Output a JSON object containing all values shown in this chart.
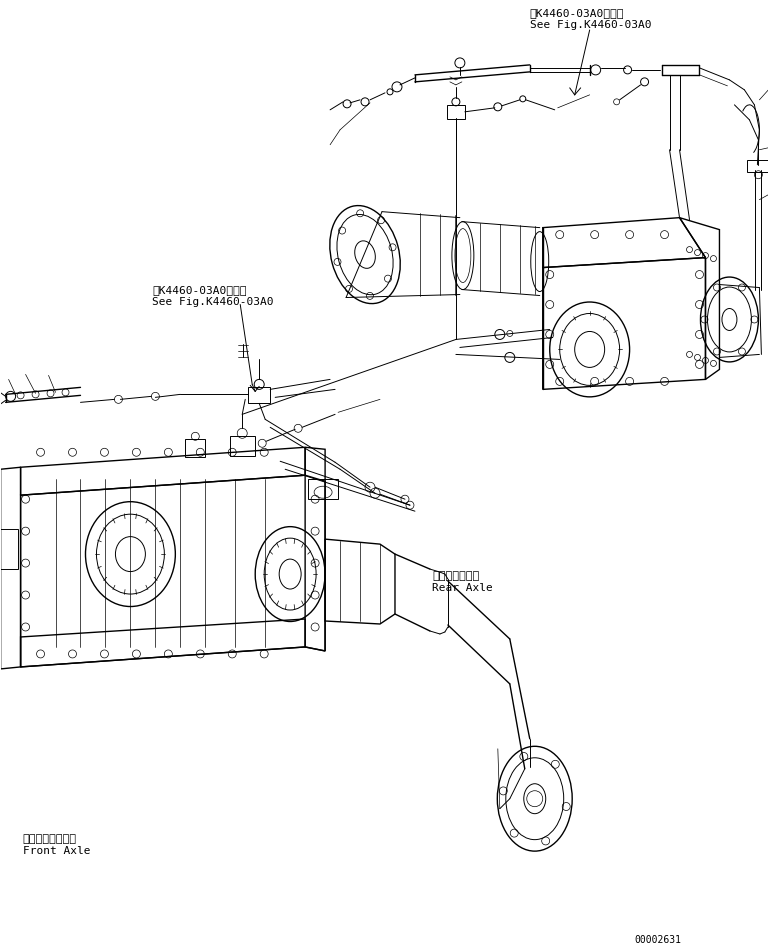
{
  "bg_color": "#ffffff",
  "line_color": "#000000",
  "fig_width": 7.69,
  "fig_height": 9.48,
  "dpi": 100,
  "doc_number": "00002631",
  "labels": {
    "top_right_jp": "第K4460-03A0図参照",
    "top_right_en": "See Fig.K4460-03A0",
    "mid_left_jp": "第K4460-03A0図参照",
    "mid_left_en": "See Fig.K4460-03A0",
    "rear_axle_jp": "リヤーアクスル",
    "rear_axle_en": "Rear Axle",
    "front_axle_jp": "フロントアクスル",
    "front_axle_en": "Front Axle"
  },
  "font_sizes": {
    "label": 7.5,
    "doc_number": 7
  }
}
